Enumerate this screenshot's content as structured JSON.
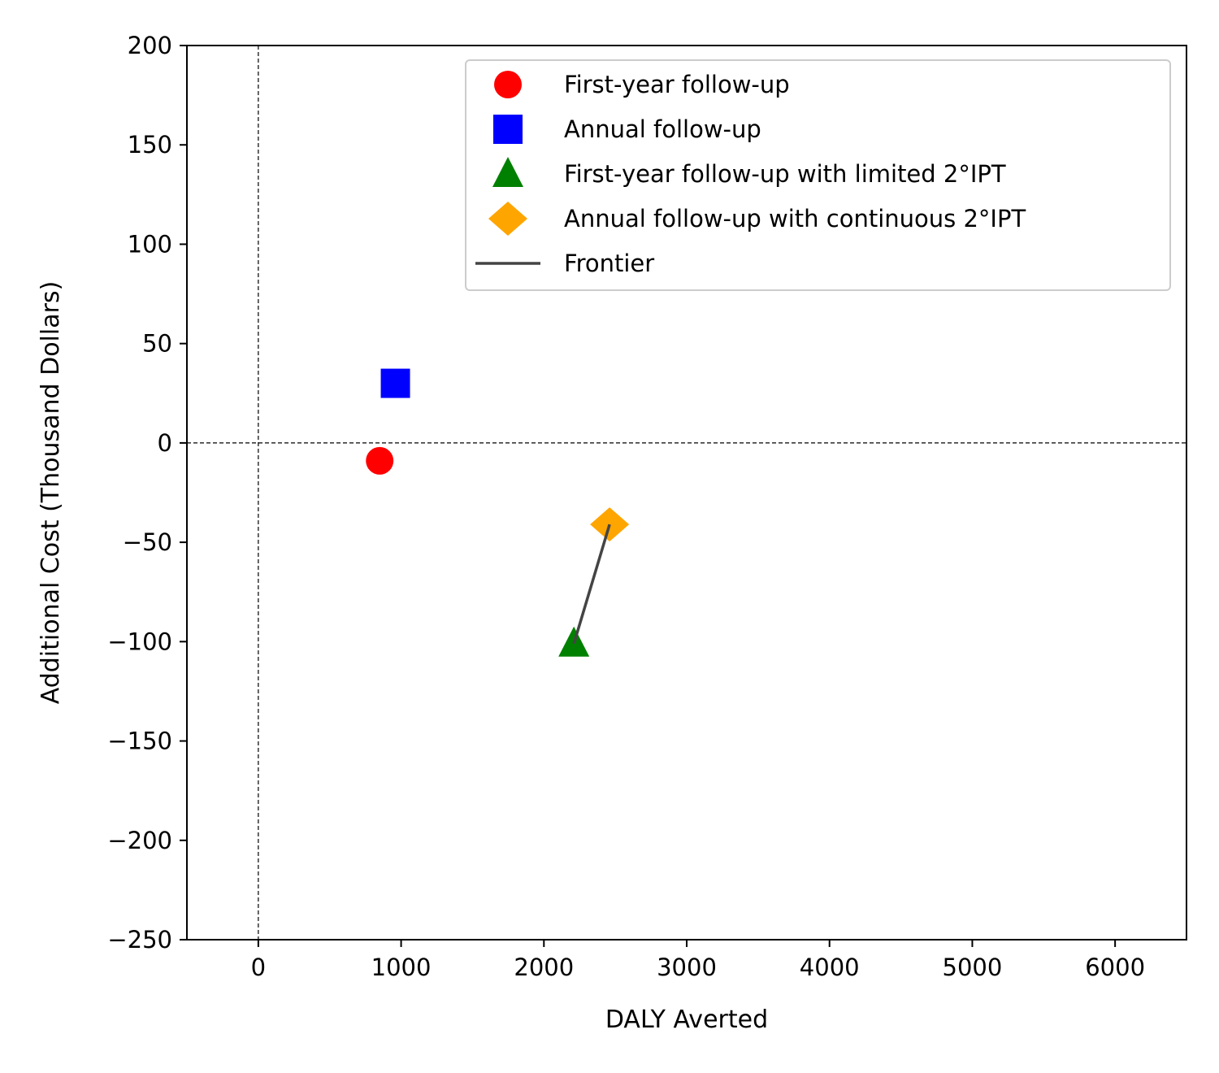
{
  "chart_data": {
    "type": "scatter",
    "title": "",
    "xlabel": "DALY Averted",
    "ylabel": "Additional Cost (Thousand Dollars)",
    "xlim": [
      -500,
      6500
    ],
    "ylim": [
      -250,
      200
    ],
    "x_ticks": [
      0,
      1000,
      2000,
      3000,
      4000,
      5000,
      6000
    ],
    "y_ticks": [
      -250,
      -200,
      -150,
      -100,
      -50,
      0,
      50,
      100,
      150,
      200
    ],
    "x_tick_labels": [
      "0",
      "1000",
      "2000",
      "3000",
      "4000",
      "5000",
      "6000"
    ],
    "y_tick_labels": [
      "−250",
      "−200",
      "−150",
      "−100",
      "−50",
      "0",
      "50",
      "100",
      "150",
      "200"
    ],
    "grid": false,
    "reference_lines": {
      "x": 0,
      "y": 0,
      "style": "dashed"
    },
    "legend_position": "top-right",
    "series": [
      {
        "name": "First-year follow-up",
        "marker": "circle",
        "color": "#ff0000",
        "x": [
          850
        ],
        "y": [
          -9
        ]
      },
      {
        "name": "Annual follow-up",
        "marker": "square",
        "color": "#0000ff",
        "x": [
          960
        ],
        "y": [
          30
        ]
      },
      {
        "name": "First-year follow-up with limited 2°IPT",
        "marker": "triangle",
        "color": "#008000",
        "x": [
          2210
        ],
        "y": [
          -101
        ]
      },
      {
        "name": "Annual follow-up with continuous 2°IPT",
        "marker": "diamond",
        "color": "#ffa500",
        "x": [
          2460
        ],
        "y": [
          -41
        ]
      }
    ],
    "frontier": {
      "name": "Frontier",
      "color": "#444444",
      "x": [
        2210,
        2460
      ],
      "y": [
        -101,
        -41
      ]
    }
  }
}
